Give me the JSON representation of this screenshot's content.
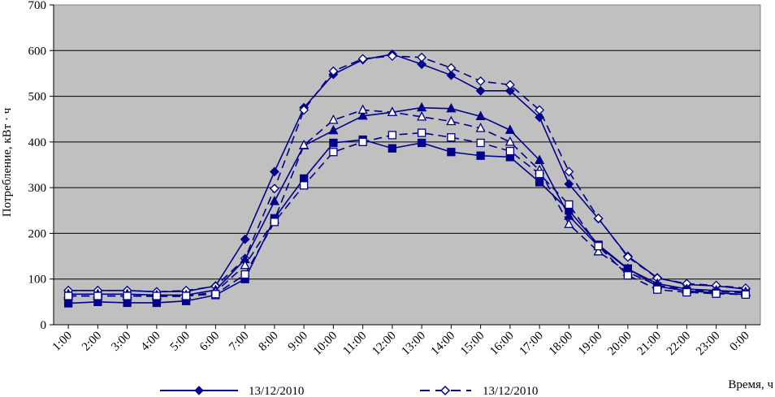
{
  "chart_data": {
    "type": "line",
    "title": "",
    "xlabel": "Время, ч",
    "ylabel": "Потребление, кВт · ч",
    "ylim": [
      0,
      700
    ],
    "yticks": [
      0,
      100,
      200,
      300,
      400,
      500,
      600,
      700
    ],
    "grid": true,
    "plot_background": "#c0c0c0",
    "line_color": "#00008b",
    "categories": [
      "1:00",
      "2:00",
      "3:00",
      "4:00",
      "5:00",
      "6:00",
      "7:00",
      "8:00",
      "9:00",
      "10:00",
      "11:00",
      "12:00",
      "13:00",
      "14:00",
      "15:00",
      "16:00",
      "17:00",
      "18:00",
      "19:00",
      "20:00",
      "21:00",
      "22:00",
      "23:00",
      "0:00"
    ],
    "legend_position": "bottom",
    "legend": [
      {
        "label": "13/12/2010",
        "style": "solid",
        "marker": "diamond-filled"
      },
      {
        "label": "13/12/2010",
        "style": "dashed",
        "marker": "diamond-open"
      }
    ],
    "series": [
      {
        "style": "solid",
        "marker": "diamond",
        "filled": true,
        "values": [
          75,
          75,
          75,
          72,
          73,
          85,
          187,
          335,
          475,
          548,
          580,
          592,
          570,
          546,
          512,
          512,
          454,
          308,
          232,
          150,
          103,
          88,
          85,
          78
        ]
      },
      {
        "style": "dashed",
        "marker": "diamond",
        "filled": false,
        "values": [
          75,
          75,
          75,
          72,
          75,
          84,
          145,
          298,
          470,
          555,
          582,
          588,
          585,
          562,
          533,
          525,
          470,
          335,
          233,
          148,
          102,
          90,
          86,
          80
        ]
      },
      {
        "style": "solid",
        "marker": "triangle",
        "filled": true,
        "values": [
          67,
          67,
          67,
          65,
          65,
          76,
          143,
          270,
          392,
          425,
          457,
          465,
          475,
          473,
          456,
          426,
          360,
          238,
          172,
          122,
          90,
          78,
          75,
          72
        ]
      },
      {
        "style": "dashed",
        "marker": "triangle",
        "filled": false,
        "values": [
          63,
          63,
          63,
          62,
          62,
          72,
          130,
          230,
          393,
          448,
          470,
          465,
          455,
          445,
          430,
          400,
          338,
          220,
          160,
          115,
          86,
          76,
          73,
          70
        ]
      },
      {
        "style": "solid",
        "marker": "square",
        "filled": true,
        "values": [
          47,
          50,
          48,
          48,
          52,
          65,
          100,
          233,
          320,
          398,
          405,
          386,
          398,
          378,
          370,
          367,
          312,
          250,
          175,
          123,
          84,
          74,
          70,
          66
        ]
      },
      {
        "style": "dashed",
        "marker": "square",
        "filled": false,
        "values": [
          63,
          63,
          63,
          63,
          63,
          67,
          110,
          225,
          305,
          378,
          400,
          415,
          420,
          410,
          398,
          380,
          330,
          263,
          172,
          108,
          77,
          71,
          68,
          66
        ]
      }
    ]
  }
}
